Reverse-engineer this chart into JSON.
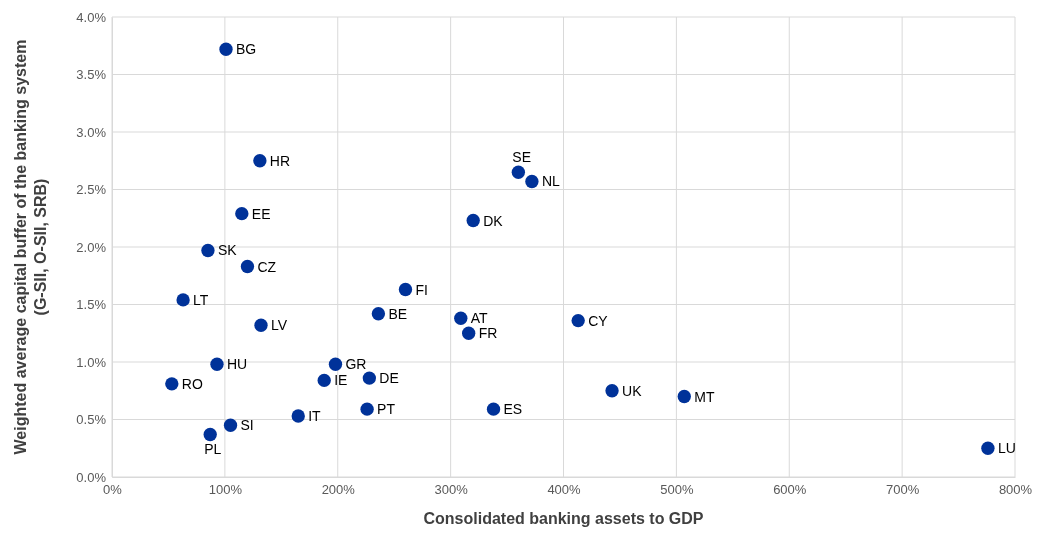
{
  "chart_data": {
    "type": "scatter",
    "xlabel": "Consolidated banking assets to GDP",
    "ylabel": "Weighted average capital buffer of the banking system (G-SII,  O-SII,  SRB)",
    "x": [
      101,
      131,
      115,
      85,
      120,
      63,
      132,
      93,
      53,
      87,
      105,
      165,
      188,
      198,
      228,
      226,
      236,
      260,
      309,
      316,
      320,
      360,
      372,
      338,
      413,
      443,
      507,
      776
    ],
    "series": [
      {
        "color": "#003299",
        "values": [
          3.72,
          2.75,
          2.29,
          1.97,
          1.83,
          1.54,
          1.32,
          0.98,
          0.81,
          0.37,
          0.45,
          0.53,
          0.84,
          0.98,
          0.86,
          0.59,
          1.42,
          1.63,
          1.38,
          1.25,
          2.23,
          2.65,
          2.57,
          0.59,
          1.36,
          0.75,
          0.7,
          0.25
        ]
      }
    ],
    "annotations": [
      {
        "text": "BG",
        "x": 101,
        "y": 3.72
      },
      {
        "text": "HR",
        "x": 131,
        "y": 2.75
      },
      {
        "text": "EE",
        "x": 115,
        "y": 2.29
      },
      {
        "text": "SK",
        "x": 85,
        "y": 1.97
      },
      {
        "text": "CZ",
        "x": 120,
        "y": 1.83
      },
      {
        "text": "LT",
        "x": 63,
        "y": 1.54
      },
      {
        "text": "LV",
        "x": 132,
        "y": 1.32
      },
      {
        "text": "HU",
        "x": 93,
        "y": 0.98
      },
      {
        "text": "RO",
        "x": 53,
        "y": 0.81
      },
      {
        "text": "PL",
        "x": 87,
        "y": 0.37
      },
      {
        "text": "SI",
        "x": 105,
        "y": 0.45
      },
      {
        "text": "IT",
        "x": 165,
        "y": 0.53
      },
      {
        "text": "IE",
        "x": 188,
        "y": 0.84
      },
      {
        "text": "GR",
        "x": 198,
        "y": 0.98
      },
      {
        "text": "DE",
        "x": 228,
        "y": 0.86
      },
      {
        "text": "PT",
        "x": 226,
        "y": 0.59
      },
      {
        "text": "BE",
        "x": 236,
        "y": 1.42
      },
      {
        "text": "FI",
        "x": 260,
        "y": 1.63
      },
      {
        "text": "AT",
        "x": 309,
        "y": 1.38
      },
      {
        "text": "FR",
        "x": 316,
        "y": 1.25
      },
      {
        "text": "DK",
        "x": 320,
        "y": 2.23
      },
      {
        "text": "SE",
        "x": 360,
        "y": 2.65
      },
      {
        "text": "NL",
        "x": 372,
        "y": 2.57
      },
      {
        "text": "ES",
        "x": 338,
        "y": 0.59
      },
      {
        "text": "CY",
        "x": 413,
        "y": 1.36
      },
      {
        "text": "UK",
        "x": 443,
        "y": 0.75
      },
      {
        "text": "MT",
        "x": 507,
        "y": 0.7
      },
      {
        "text": "LU",
        "x": 776,
        "y": 0.25
      }
    ],
    "xlim": [
      0,
      800
    ],
    "ylim": [
      0,
      4
    ],
    "xticks": [
      {
        "value": 0,
        "label": "0%"
      },
      {
        "value": 100,
        "label": "100%"
      },
      {
        "value": 200,
        "label": "200%"
      },
      {
        "value": 300,
        "label": "300%"
      },
      {
        "value": 400,
        "label": "400%"
      },
      {
        "value": 500,
        "label": "500%"
      },
      {
        "value": 600,
        "label": "600%"
      },
      {
        "value": 700,
        "label": "700%"
      },
      {
        "value": 800,
        "label": "800%"
      }
    ],
    "yticks": [
      {
        "value": 0,
        "label": "0.0%"
      },
      {
        "value": 0.5,
        "label": "0.5%"
      },
      {
        "value": 1,
        "label": "1.0%"
      },
      {
        "value": 1.5,
        "label": "1.5%"
      },
      {
        "value": 2,
        "label": "2.0%"
      },
      {
        "value": 2.5,
        "label": "2.5%"
      },
      {
        "value": 3,
        "label": "3.0%"
      },
      {
        "value": 3.5,
        "label": "3.5%"
      },
      {
        "value": 4,
        "label": "4.0%"
      }
    ],
    "grid": true,
    "marker": "circle"
  }
}
